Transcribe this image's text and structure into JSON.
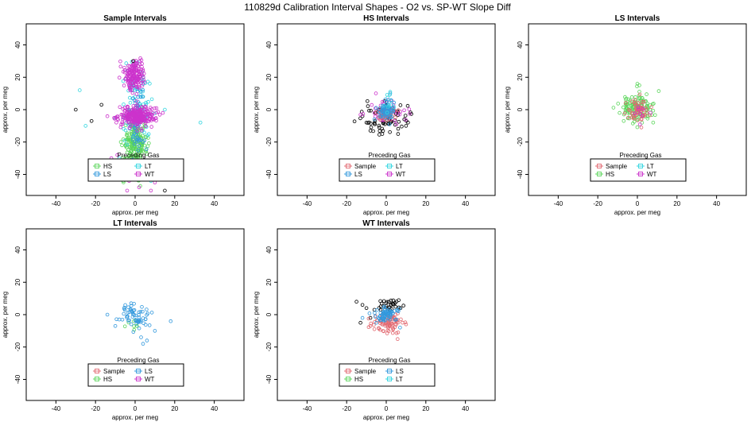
{
  "page": {
    "title": "110829d   Calibration Interval Shapes - O2 vs. SP-WT Slope Diff"
  },
  "colors": {
    "Sample": "#e26870",
    "HS": "#5cd65c",
    "LS": "#3399dd",
    "LT": "#33d6e0",
    "WT": "#cc33cc",
    "black": "#000000"
  },
  "chart_data": [
    {
      "type": "scatter",
      "id": "sample",
      "title": "Sample Intervals",
      "xlabel": "approx. per meg",
      "ylabel": "approx. per meg",
      "xlim": [
        -55,
        55
      ],
      "ylim": [
        -53,
        53
      ],
      "xticks": [
        -40,
        -20,
        0,
        20,
        40
      ],
      "yticks": [
        -40,
        -20,
        0,
        20,
        40
      ],
      "legend": {
        "title": "Preceding Gas",
        "entries": [
          "HS",
          "LT",
          "LS",
          "WT"
        ],
        "position": "bottom-right"
      },
      "series": [
        {
          "name": "HS",
          "clusters": [
            {
              "cx": 0,
              "cy": -22,
              "sx": 3,
              "sy": 8,
              "n": 220
            }
          ],
          "points": [
            [
              -3,
              -1
            ],
            [
              -5,
              -4
            ],
            [
              3,
              2
            ],
            [
              -2,
              -14
            ],
            [
              5,
              -10
            ]
          ]
        },
        {
          "name": "LT",
          "clusters": [
            {
              "cx": 1,
              "cy": 3,
              "sx": 4,
              "sy": 12,
              "n": 80
            }
          ],
          "points": [
            [
              -28,
              12
            ],
            [
              33,
              -8
            ],
            [
              15,
              0
            ],
            [
              -10,
              -5
            ],
            [
              -8,
              -30
            ],
            [
              -25,
              -10
            ],
            [
              8,
              -44
            ],
            [
              -4,
              24
            ]
          ]
        },
        {
          "name": "LS",
          "clusters": [
            {
              "cx": 1,
              "cy": -5,
              "sx": 2.5,
              "sy": 10,
              "n": 60
            }
          ],
          "points": [
            [
              3,
              -38
            ],
            [
              -2,
              -36
            ],
            [
              4,
              -20
            ]
          ]
        },
        {
          "name": "WT",
          "clusters": [
            {
              "cx": 1,
              "cy": -4,
              "sx": 4.5,
              "sy": 3,
              "n": 280
            },
            {
              "cx": 0,
              "cy": 22,
              "sx": 2.5,
              "sy": 5,
              "n": 160
            }
          ],
          "points": [
            [
              -14,
              -4
            ],
            [
              -12,
              -30
            ],
            [
              -10,
              -39
            ],
            [
              -4,
              -50
            ],
            [
              8,
              -50
            ],
            [
              10,
              -45
            ],
            [
              -9,
              -28
            ],
            [
              14,
              -2
            ],
            [
              -18,
              -34
            ],
            [
              6,
              -40
            ],
            [
              -3,
              -44
            ],
            [
              2,
              -48
            ]
          ]
        },
        {
          "name": "other",
          "clusters": [],
          "points": [
            [
              -30,
              0
            ],
            [
              -17,
              3
            ],
            [
              15,
              -50
            ],
            [
              -22,
              -7
            ],
            [
              -1,
              30
            ]
          ]
        }
      ]
    },
    {
      "type": "scatter",
      "id": "hs",
      "title": "HS Intervals",
      "xlabel": "approx. per meg",
      "ylabel": "approx. per meg",
      "xlim": [
        -55,
        55
      ],
      "ylim": [
        -53,
        53
      ],
      "xticks": [
        -40,
        -20,
        0,
        20,
        40
      ],
      "yticks": [
        -40,
        -20,
        0,
        20,
        40
      ],
      "legend": {
        "title": "Preceding Gas",
        "entries": [
          "Sample",
          "LT",
          "LS",
          "WT"
        ],
        "position": "bottom-right"
      },
      "series": [
        {
          "name": "other",
          "clusters": [
            {
              "cx": 0,
              "cy": -5,
              "sx": 5.5,
              "sy": 4.5,
              "n": 70
            }
          ],
          "points": [
            [
              -12,
              -4
            ],
            [
              -10,
              -8
            ],
            [
              11,
              -8
            ],
            [
              6,
              -15
            ],
            [
              -2,
              -15
            ],
            [
              10,
              -10
            ],
            [
              -8,
              -13
            ]
          ]
        },
        {
          "name": "WT",
          "clusters": [
            {
              "cx": 0,
              "cy": -1,
              "sx": 5,
              "sy": 3.5,
              "n": 45
            }
          ],
          "points": []
        },
        {
          "name": "Sample",
          "clusters": [
            {
              "cx": 0,
              "cy": -3,
              "sx": 2.5,
              "sy": 2,
              "n": 45
            }
          ],
          "points": []
        },
        {
          "name": "LS",
          "clusters": [
            {
              "cx": 0,
              "cy": 0,
              "sx": 2,
              "sy": 3,
              "n": 70
            }
          ],
          "points": [
            [
              2,
              10
            ],
            [
              -6,
              -6
            ]
          ]
        },
        {
          "name": "LT",
          "clusters": [
            {
              "cx": 1,
              "cy": 4,
              "sx": 1.5,
              "sy": 3,
              "n": 10
            }
          ],
          "points": [
            [
              2,
              11
            ]
          ]
        }
      ]
    },
    {
      "type": "scatter",
      "id": "ls",
      "title": "LS Intervals",
      "xlabel": "approx. per meg",
      "ylabel": "approx. per meg",
      "xlim": [
        -55,
        55
      ],
      "ylim": [
        -53,
        53
      ],
      "xticks": [
        -40,
        -20,
        0,
        20,
        40
      ],
      "yticks": [
        -40,
        -20,
        0,
        20,
        40
      ],
      "legend": {
        "title": "Preceding Gas",
        "entries": [
          "Sample",
          "LT",
          "HS",
          "WT"
        ],
        "position": "bottom-right"
      },
      "series": [
        {
          "name": "HS",
          "clusters": [
            {
              "cx": 0,
              "cy": 1,
              "sx": 4.5,
              "sy": 4.5,
              "n": 130
            }
          ],
          "points": [
            [
              0,
              16
            ],
            [
              1,
              15
            ],
            [
              -9,
              -2
            ],
            [
              8,
              -8
            ]
          ]
        },
        {
          "name": "Sample",
          "clusters": [
            {
              "cx": 0,
              "cy": 0,
              "sx": 3,
              "sy": 3.5,
              "n": 60
            }
          ],
          "points": [
            [
              2,
              -11
            ]
          ]
        },
        {
          "name": "WT",
          "clusters": [
            {
              "cx": 1,
              "cy": -2,
              "sx": 2,
              "sy": 3,
              "n": 8
            }
          ],
          "points": []
        }
      ]
    },
    {
      "type": "scatter",
      "id": "lt",
      "title": "LT Intervals",
      "xlabel": "approx. per meg",
      "ylabel": "approx. per meg",
      "xlim": [
        -55,
        55
      ],
      "ylim": [
        -53,
        53
      ],
      "xticks": [
        -40,
        -20,
        0,
        20,
        40
      ],
      "yticks": [
        -40,
        -20,
        0,
        20,
        40
      ],
      "legend": {
        "title": "Preceding Gas",
        "entries": [
          "Sample",
          "LS",
          "HS",
          "WT"
        ],
        "position": "bottom-right"
      },
      "series": [
        {
          "name": "HS",
          "clusters": [
            {
              "cx": -1,
              "cy": -6,
              "sx": 2,
              "sy": 2,
              "n": 8
            }
          ],
          "points": []
        },
        {
          "name": "LS",
          "clusters": [
            {
              "cx": 0,
              "cy": -1,
              "sx": 3.5,
              "sy": 4,
              "n": 60
            }
          ],
          "points": [
            [
              -14,
              0
            ],
            [
              18,
              -4
            ],
            [
              -10,
              -7
            ],
            [
              4,
              -18
            ],
            [
              3,
              -14
            ],
            [
              6,
              -16
            ],
            [
              10,
              -10
            ],
            [
              -2,
              7
            ],
            [
              -8,
              -3
            ]
          ]
        }
      ]
    },
    {
      "type": "scatter",
      "id": "wt",
      "title": "WT Intervals",
      "xlabel": "approx. per meg",
      "ylabel": "approx. per meg",
      "xlim": [
        -55,
        55
      ],
      "ylim": [
        -53,
        53
      ],
      "xticks": [
        -40,
        -20,
        0,
        20,
        40
      ],
      "yticks": [
        -40,
        -20,
        0,
        20,
        40
      ],
      "legend": {
        "title": "Preceding Gas",
        "entries": [
          "Sample",
          "LS",
          "HS",
          "LT"
        ],
        "position": "bottom-right"
      },
      "series": [
        {
          "name": "black",
          "clusters": [
            {
              "cx": 2,
              "cy": 6,
              "sx": 3,
              "sy": 2,
              "n": 30
            }
          ],
          "points": [
            [
              -15,
              8
            ],
            [
              -12,
              6
            ],
            [
              -10,
              4
            ],
            [
              -8,
              -2
            ],
            [
              -13,
              -5
            ],
            [
              -6,
              3
            ]
          ]
        },
        {
          "name": "Sample",
          "clusters": [
            {
              "cx": 1,
              "cy": -5,
              "sx": 4,
              "sy": 3,
              "n": 80
            }
          ],
          "points": [
            [
              -8,
              -7
            ],
            [
              10,
              -6
            ],
            [
              -6,
              -9
            ],
            [
              6,
              -11
            ]
          ]
        },
        {
          "name": "LS",
          "clusters": [
            {
              "cx": 0,
              "cy": 0,
              "sx": 2.5,
              "sy": 2.5,
              "n": 70
            }
          ],
          "points": [
            [
              -12,
              -2
            ],
            [
              7,
              -8
            ],
            [
              -5,
              -5
            ],
            [
              5,
              -3
            ]
          ]
        }
      ]
    }
  ]
}
